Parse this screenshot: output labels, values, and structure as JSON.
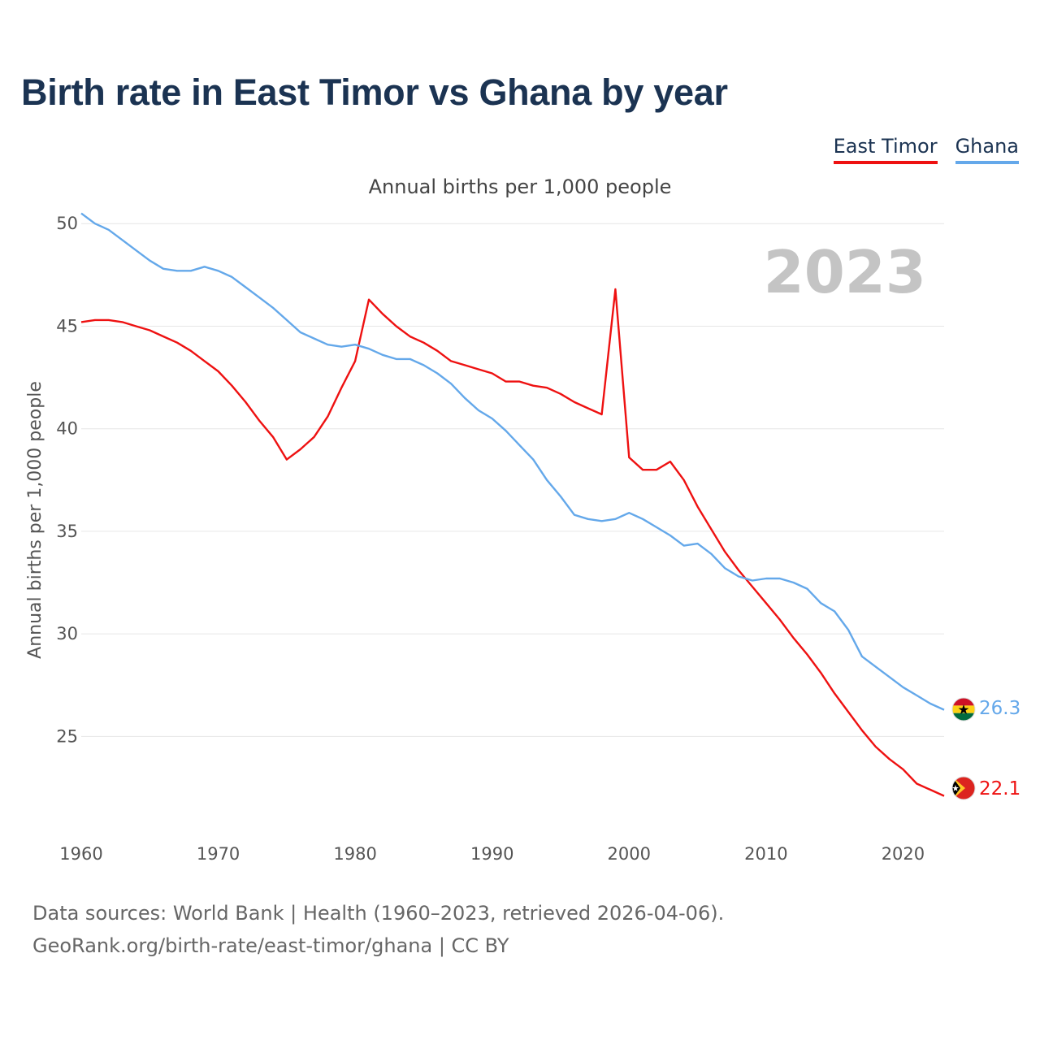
{
  "header": {
    "title": "Birth rate in East Timor vs Ghana by year",
    "subtitle": "Annual births per 1,000 people"
  },
  "legend": {
    "east_timor": "East Timor",
    "ghana": "Ghana"
  },
  "footer": {
    "line1": "Data sources: World Bank | Health (1960–2023, retrieved 2026-04-06).",
    "line2": "GeoRank.org/birth-rate/east-timor/ghana | CC BY"
  },
  "colors": {
    "east_timor": "#ee1111",
    "ghana": "#64a8ea",
    "grid": "#e6e6e6"
  },
  "icons": [
    "ghana-flag-icon",
    "east-timor-flag-icon"
  ],
  "chart_data": {
    "type": "line",
    "title": "Birth rate in East Timor vs Ghana by year",
    "subtitle": "Annual births per 1,000 people",
    "xlabel": "",
    "ylabel": "Annual births per 1,000 people",
    "xlim": [
      1960,
      2023
    ],
    "ylim": [
      20.5,
      51
    ],
    "yticks": [
      25,
      30,
      35,
      40,
      45,
      50
    ],
    "xticks": [
      1960,
      1970,
      1980,
      1990,
      2000,
      2010,
      2020
    ],
    "grid": true,
    "legend_position": "top-right",
    "year_label": "2023",
    "x": [
      1960,
      1961,
      1962,
      1963,
      1964,
      1965,
      1966,
      1967,
      1968,
      1969,
      1970,
      1971,
      1972,
      1973,
      1974,
      1975,
      1976,
      1977,
      1978,
      1979,
      1980,
      1981,
      1982,
      1983,
      1984,
      1985,
      1986,
      1987,
      1988,
      1989,
      1990,
      1991,
      1992,
      1993,
      1994,
      1995,
      1996,
      1997,
      1998,
      1999,
      2000,
      2001,
      2002,
      2003,
      2004,
      2005,
      2006,
      2007,
      2008,
      2009,
      2010,
      2011,
      2012,
      2013,
      2014,
      2015,
      2016,
      2017,
      2018,
      2019,
      2020,
      2021,
      2022,
      2023
    ],
    "series": [
      {
        "name": "East Timor",
        "end_label": "22.1",
        "values": [
          45.2,
          45.3,
          45.3,
          45.2,
          45.0,
          44.8,
          44.5,
          44.2,
          43.8,
          43.3,
          42.8,
          42.1,
          41.3,
          40.4,
          39.6,
          38.5,
          39.0,
          39.6,
          40.6,
          42.0,
          43.3,
          46.3,
          45.6,
          45.0,
          44.5,
          44.2,
          43.8,
          43.3,
          43.1,
          42.9,
          42.7,
          42.3,
          42.3,
          42.1,
          42.0,
          41.7,
          41.3,
          41.0,
          40.7,
          46.8,
          38.6,
          38.0,
          38.0,
          38.4,
          37.5,
          36.2,
          35.1,
          34.0,
          33.1,
          32.3,
          31.5,
          30.7,
          29.8,
          29.0,
          28.1,
          27.1,
          26.2,
          25.3,
          24.5,
          23.9,
          23.4,
          22.7,
          22.4,
          22.1
        ]
      },
      {
        "name": "Ghana",
        "end_label": "26.3",
        "values": [
          50.5,
          50.0,
          49.7,
          49.2,
          48.7,
          48.2,
          47.8,
          47.7,
          47.7,
          47.9,
          47.7,
          47.4,
          46.9,
          46.4,
          45.9,
          45.3,
          44.7,
          44.4,
          44.1,
          44.0,
          44.1,
          43.9,
          43.6,
          43.4,
          43.4,
          43.1,
          42.7,
          42.2,
          41.5,
          40.9,
          40.5,
          39.9,
          39.2,
          38.5,
          37.5,
          36.7,
          35.8,
          35.6,
          35.5,
          35.6,
          35.9,
          35.6,
          35.2,
          34.8,
          34.3,
          34.4,
          33.9,
          33.2,
          32.8,
          32.6,
          32.7,
          32.7,
          32.5,
          32.2,
          31.5,
          31.1,
          30.2,
          28.9,
          28.4,
          27.9,
          27.4,
          27.0,
          26.6,
          26.3
        ]
      }
    ]
  }
}
